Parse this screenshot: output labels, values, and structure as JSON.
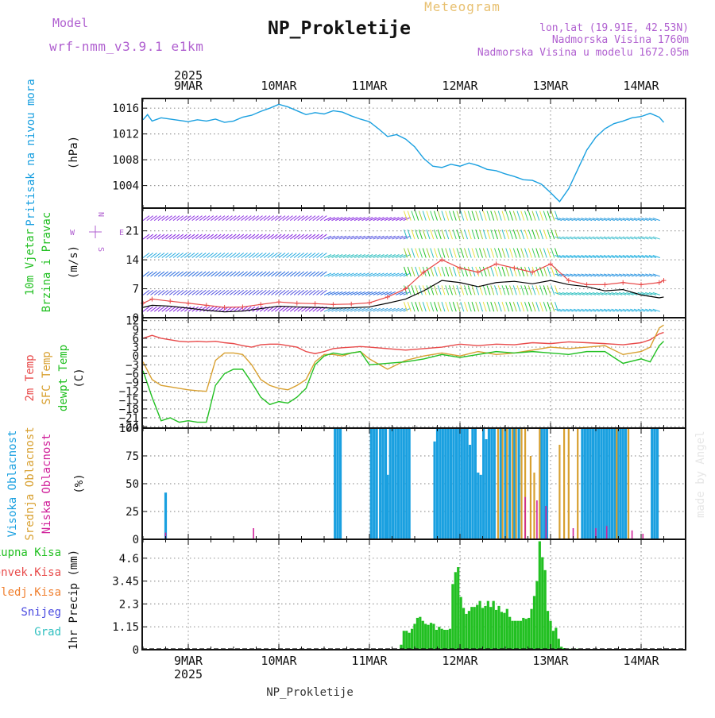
{
  "header": {
    "model_label": "Model",
    "model_name": "wrf-nmm_v3.9.1 e1km",
    "title": "NP_Prokletije",
    "subtitle": "Meteogram",
    "lonlat": "lon,lat (19.91E, 42.53N)",
    "altitude": "Nadmorska Visina 1760m",
    "model_altitude": "Nadmorska Visina u modelu 1672.05m",
    "footer": "NP_Prokletije",
    "credit": "made by Angel"
  },
  "colors": {
    "pressure": "#1aa0e0",
    "temp2m": "#e84a4a",
    "sfc_temp": "#d8a030",
    "dewpt": "#22c022",
    "high_cloud": "#1aa0e0",
    "mid_cloud": "#d8a030",
    "low_cloud": "#d0209a",
    "precip_total": "#22c022",
    "precip_conv": "#e84a4a",
    "precip_frozen": "#f08030",
    "snow": "#4a4ae0",
    "hail": "#30c0c0",
    "model_label": "#b060d0",
    "subtitle": "#e8c070",
    "wind_speed": "#000000",
    "wind_gust": "#e84a4a"
  },
  "time_axis": {
    "year": "2025",
    "days": [
      "9MAR",
      "10MAR",
      "11MAR",
      "12MAR",
      "13MAR",
      "14MAR"
    ],
    "start_day_offset": -0.5,
    "end_day_offset": 5.25
  },
  "panel_labels": {
    "pressure": [
      "Pritisak na nivou mora",
      "(hPa)"
    ],
    "wind": [
      "10m Vjetar",
      "Brzina i Pravac",
      "(m/s)"
    ],
    "compass": [
      "N",
      "W",
      "E",
      "S"
    ],
    "temp": [
      "2m Temp",
      "SFC Temp",
      "dewpt Temp",
      "(C)"
    ],
    "cloud": [
      "Visoka Oblacnost",
      "Srednja Oblacnost",
      "Niska Oblacnost",
      "(%)"
    ],
    "precip_legend": [
      "Ukupna Kisa",
      "Konvek.Kisa",
      "Zaledj.Kisa",
      "Snijeg",
      "Grad"
    ],
    "precip_axis": "1hr Precip (mm)"
  },
  "chart_data": [
    {
      "type": "line",
      "name": "pressure",
      "ylabel": "(hPa)",
      "ylim": [
        1000.5,
        1017.5
      ],
      "yticks": [
        1004,
        1008,
        1012,
        1016
      ],
      "x": [
        -0.5,
        -0.45,
        -0.4,
        -0.3,
        -0.2,
        -0.1,
        0,
        0.1,
        0.2,
        0.3,
        0.4,
        0.5,
        0.6,
        0.7,
        0.8,
        0.9,
        1.0,
        1.1,
        1.2,
        1.3,
        1.4,
        1.5,
        1.6,
        1.7,
        1.8,
        1.9,
        2.0,
        2.1,
        2.2,
        2.3,
        2.4,
        2.5,
        2.6,
        2.7,
        2.8,
        2.9,
        3.0,
        3.1,
        3.2,
        3.3,
        3.4,
        3.5,
        3.6,
        3.7,
        3.8,
        3.9,
        4.0,
        4.1,
        4.2,
        4.3,
        4.4,
        4.5,
        4.6,
        4.7,
        4.8,
        4.9,
        5.0,
        5.1,
        5.2,
        5.25
      ],
      "values": [
        1014.2,
        1015.0,
        1014.0,
        1014.5,
        1014.3,
        1014.1,
        1013.9,
        1014.2,
        1014.0,
        1014.3,
        1013.8,
        1014.0,
        1014.6,
        1014.9,
        1015.5,
        1016.0,
        1016.6,
        1016.2,
        1015.6,
        1015.0,
        1015.3,
        1015.1,
        1015.6,
        1015.4,
        1014.8,
        1014.3,
        1013.9,
        1012.8,
        1011.6,
        1011.9,
        1011.2,
        1010.0,
        1008.2,
        1007.0,
        1006.8,
        1007.3,
        1007.0,
        1007.5,
        1007.1,
        1006.5,
        1006.3,
        1005.8,
        1005.4,
        1004.9,
        1004.8,
        1004.2,
        1002.9,
        1001.5,
        1003.5,
        1006.5,
        1009.5,
        1011.5,
        1012.8,
        1013.6,
        1014.0,
        1014.5,
        1014.7,
        1015.2,
        1014.6,
        1013.8
      ]
    },
    {
      "type": "line",
      "name": "wind",
      "ylabel": "(m/s)",
      "ylim": [
        0,
        26.5
      ],
      "yticks": [
        0,
        7,
        14,
        21
      ],
      "x": [
        -0.5,
        -0.4,
        -0.2,
        0,
        0.2,
        0.4,
        0.6,
        0.8,
        1.0,
        1.2,
        1.4,
        1.6,
        1.8,
        2.0,
        2.2,
        2.4,
        2.6,
        2.8,
        3.0,
        3.2,
        3.4,
        3.6,
        3.8,
        4.0,
        4.2,
        4.4,
        4.6,
        4.8,
        5.0,
        5.2,
        5.25
      ],
      "speed": [
        2.5,
        3.0,
        2.8,
        2.3,
        1.8,
        1.4,
        1.6,
        2.2,
        2.8,
        2.6,
        2.5,
        2.3,
        2.4,
        2.6,
        3.5,
        4.5,
        6.5,
        9.0,
        8.5,
        7.5,
        8.5,
        8.8,
        8.2,
        9.0,
        8.0,
        7.5,
        6.5,
        6.8,
        5.5,
        4.8,
        5.0
      ],
      "gust": [
        3.5,
        4.5,
        4.0,
        3.5,
        3.0,
        2.5,
        2.6,
        3.2,
        3.8,
        3.5,
        3.4,
        3.2,
        3.3,
        3.6,
        5.0,
        7.0,
        11.0,
        14.0,
        12.0,
        11.0,
        13.0,
        12.0,
        11.0,
        13.0,
        9.0,
        8.0,
        8.0,
        8.5,
        8.0,
        8.5,
        9.0
      ]
    },
    {
      "type": "line",
      "name": "temperature",
      "ylabel": "(C)",
      "ylim": [
        -24.5,
        13
      ],
      "yticks": [
        -24,
        -21,
        -18,
        -15,
        -12,
        -9,
        -6,
        -3,
        0,
        3,
        6,
        9,
        12
      ],
      "x": [
        -0.5,
        -0.4,
        -0.3,
        -0.2,
        -0.1,
        0,
        0.1,
        0.2,
        0.3,
        0.4,
        0.5,
        0.6,
        0.7,
        0.8,
        0.9,
        1.0,
        1.1,
        1.2,
        1.3,
        1.4,
        1.5,
        1.6,
        1.7,
        1.8,
        1.9,
        2.0,
        2.2,
        2.4,
        2.6,
        2.8,
        3.0,
        3.2,
        3.4,
        3.6,
        3.8,
        4.0,
        4.2,
        4.4,
        4.6,
        4.8,
        5.0,
        5.1,
        5.2,
        5.25
      ],
      "temp2m": [
        6.0,
        7.0,
        6.0,
        5.5,
        5.0,
        4.8,
        5.0,
        4.8,
        5.0,
        4.5,
        4.2,
        3.5,
        3.0,
        3.8,
        4.0,
        4.0,
        3.5,
        3.0,
        1.5,
        0.8,
        1.5,
        2.5,
        2.8,
        3.0,
        3.2,
        3.0,
        2.5,
        2.0,
        2.5,
        3.0,
        4.0,
        3.5,
        4.0,
        3.8,
        4.5,
        4.2,
        4.8,
        4.5,
        4.2,
        3.8,
        4.5,
        5.5,
        7.5,
        8.0
      ],
      "sfc": [
        -2.0,
        -8.0,
        -10.0,
        -10.5,
        -11.0,
        -11.5,
        -11.8,
        -12.0,
        -1.5,
        1.0,
        1.0,
        0.5,
        -3.0,
        -8.0,
        -10.0,
        -11.0,
        -11.5,
        -10.0,
        -8.0,
        -2.0,
        0.5,
        0.5,
        0.0,
        1.0,
        1.5,
        -1.0,
        -4.5,
        -1.5,
        0.0,
        1.0,
        0.0,
        1.5,
        0.5,
        1.0,
        2.0,
        3.0,
        2.5,
        3.0,
        3.5,
        0.5,
        1.5,
        3.0,
        9.5,
        10.5
      ],
      "dewpt": [
        -5.0,
        -14.0,
        -22.0,
        -21.0,
        -22.5,
        -22.0,
        -22.5,
        -22.5,
        -10.0,
        -6.0,
        -4.5,
        -4.5,
        -9.0,
        -14.0,
        -16.5,
        -15.5,
        -16.0,
        -14.0,
        -11.0,
        -3.0,
        0.0,
        1.0,
        0.5,
        1.0,
        1.5,
        -3.0,
        -2.5,
        -2.0,
        -1.0,
        0.5,
        -0.5,
        0.5,
        1.5,
        1.0,
        1.5,
        1.0,
        0.5,
        1.5,
        1.5,
        -2.5,
        -1.0,
        -2.0,
        3.5,
        5.0
      ]
    },
    {
      "type": "bar",
      "name": "cloud_cover",
      "ylabel": "(%)",
      "ylim": [
        0,
        100
      ],
      "yticks": [
        0,
        25,
        50,
        75,
        100
      ],
      "series": [
        {
          "name": "Visoka Oblacnost",
          "x": [
            -0.25,
            1.62,
            1.65,
            1.68,
            2.02,
            2.05,
            2.08,
            2.12,
            2.15,
            2.18,
            2.2,
            2.23,
            2.26,
            2.29,
            2.32,
            2.35,
            2.38,
            2.41,
            2.44,
            2.72,
            2.75,
            2.78,
            2.81,
            2.84,
            2.87,
            2.9,
            2.93,
            2.96,
            2.99,
            3.02,
            3.05,
            3.08,
            3.11,
            3.14,
            3.17,
            3.2,
            3.23,
            3.26,
            3.29,
            3.32,
            3.35,
            3.38,
            3.45,
            3.5,
            3.55,
            3.6,
            3.65,
            3.9,
            3.93,
            3.96,
            4.35,
            4.38,
            4.41,
            4.44,
            4.47,
            4.5,
            4.53,
            4.56,
            4.59,
            4.62,
            4.65,
            4.68,
            4.71,
            4.74,
            4.77,
            4.8,
            4.83,
            5.12,
            5.15,
            5.18
          ],
          "values": [
            42,
            100,
            100,
            100,
            100,
            100,
            100,
            100,
            100,
            100,
            58,
            100,
            100,
            100,
            100,
            100,
            100,
            100,
            100,
            88,
            100,
            100,
            100,
            100,
            100,
            100,
            100,
            100,
            100,
            100,
            100,
            100,
            85,
            100,
            100,
            60,
            58,
            100,
            90,
            100,
            100,
            100,
            100,
            100,
            100,
            100,
            100,
            100,
            100,
            100,
            100,
            100,
            100,
            100,
            100,
            100,
            100,
            100,
            100,
            100,
            100,
            100,
            100,
            100,
            100,
            100,
            100,
            100,
            100,
            100
          ]
        },
        {
          "name": "Srednja Oblacnost",
          "x": [
            3.42,
            3.47,
            3.52,
            3.58,
            3.62,
            3.68,
            3.72,
            3.78,
            3.82,
            3.88,
            4.1,
            4.15,
            4.2,
            4.3,
            4.73,
            4.86
          ],
          "values": [
            100,
            100,
            100,
            100,
            100,
            100,
            100,
            75,
            60,
            100,
            85,
            100,
            100,
            100,
            100,
            100
          ]
        },
        {
          "name": "Niska Oblacnost",
          "x": [
            -0.25,
            0.72,
            3.72,
            3.85,
            3.95,
            4.25,
            4.5,
            4.62,
            4.9,
            5.02
          ],
          "values": [
            6,
            10,
            38,
            35,
            30,
            10,
            10,
            12,
            8,
            5
          ]
        }
      ]
    },
    {
      "type": "bar",
      "name": "precipitation",
      "ylabel": "1hr Precip (mm)",
      "ylim": [
        0,
        5.55
      ],
      "yticks": [
        0,
        1.15,
        2.3,
        3.45,
        4.6
      ],
      "x": [
        2.35,
        2.38,
        2.41,
        2.44,
        2.47,
        2.5,
        2.53,
        2.56,
        2.59,
        2.62,
        2.65,
        2.68,
        2.71,
        2.74,
        2.77,
        2.8,
        2.83,
        2.86,
        2.89,
        2.92,
        2.95,
        2.98,
        3.01,
        3.04,
        3.07,
        3.1,
        3.13,
        3.16,
        3.19,
        3.22,
        3.25,
        3.28,
        3.31,
        3.34,
        3.37,
        3.4,
        3.43,
        3.46,
        3.49,
        3.52,
        3.55,
        3.58,
        3.61,
        3.64,
        3.67,
        3.7,
        3.73,
        3.76,
        3.79,
        3.82,
        3.85,
        3.88,
        3.91,
        3.94,
        3.97,
        4.0,
        4.03,
        4.06,
        4.09,
        4.12,
        4.15,
        4.18,
        4.21,
        4.24,
        4.27,
        4.3
      ],
      "values": [
        0.25,
        0.95,
        0.95,
        0.85,
        1.05,
        1.3,
        1.6,
        1.65,
        1.45,
        1.3,
        1.25,
        1.35,
        1.3,
        1.0,
        1.15,
        1.05,
        1.0,
        1.0,
        1.05,
        3.3,
        3.9,
        4.15,
        2.65,
        2.1,
        1.8,
        1.95,
        2.15,
        2.15,
        2.25,
        2.45,
        2.1,
        2.2,
        2.45,
        2.15,
        2.45,
        2.0,
        2.2,
        1.9,
        1.85,
        2.05,
        1.65,
        1.45,
        1.45,
        1.45,
        1.45,
        1.6,
        1.55,
        1.6,
        2.05,
        2.7,
        3.45,
        5.45,
        4.65,
        4.0,
        1.95,
        1.45,
        0.95,
        1.1,
        0.55,
        0.15,
        0.08,
        0.05,
        0.05,
        0.05,
        0.05,
        0.05
      ]
    }
  ]
}
